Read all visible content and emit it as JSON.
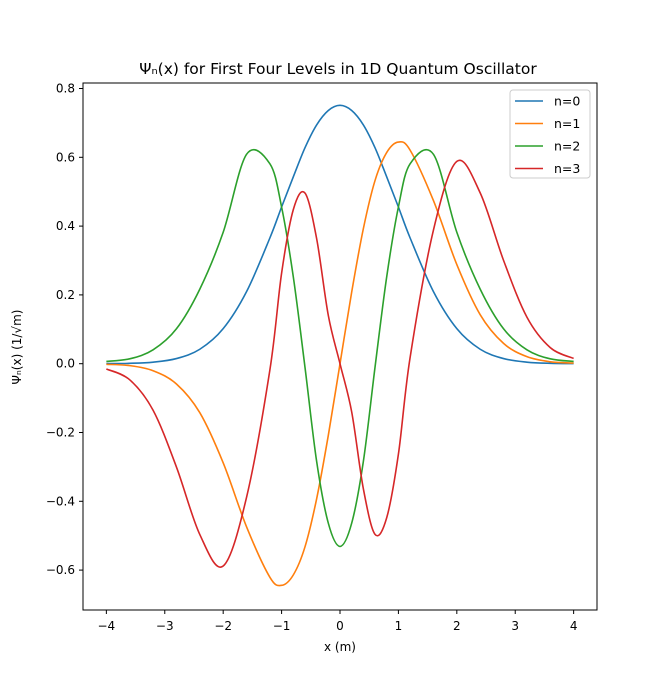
{
  "chart_data": {
    "type": "line",
    "title": "Ψₙ(x) for First Four Levels in 1D Quantum Oscillator",
    "xlabel": "x (m)",
    "ylabel": "Ψₙ(x) (1/√m)",
    "xlim": [
      -4.4,
      4.4
    ],
    "ylim": [
      -0.716,
      0.816
    ],
    "x_ticks": [
      -4,
      -3,
      -2,
      -1,
      0,
      1,
      2,
      3,
      4
    ],
    "x_tick_labels": [
      "−4",
      "−3",
      "−2",
      "−1",
      "0",
      "1",
      "2",
      "3",
      "4"
    ],
    "y_ticks": [
      -0.6,
      -0.4,
      -0.2,
      0.0,
      0.2,
      0.4,
      0.6,
      0.8
    ],
    "y_tick_labels": [
      "−0.6",
      "−0.4",
      "−0.2",
      "0.0",
      "0.2",
      "0.4",
      "0.6",
      "0.8"
    ],
    "grid": false,
    "legend_position": "top-right",
    "x": [
      -4.0,
      -3.6,
      -3.2,
      -2.8,
      -2.4,
      -2.0,
      -1.6,
      -1.2,
      -1.0,
      -0.8,
      -0.6,
      -0.4,
      -0.2,
      0.0,
      0.2,
      0.4,
      0.6,
      0.8,
      1.0,
      1.2,
      1.6,
      2.0,
      2.4,
      2.8,
      3.2,
      3.6,
      4.0
    ],
    "series": [
      {
        "name": "n=0",
        "color": "#1f77b4",
        "values": [
          0.0003,
          0.0011,
          0.0045,
          0.0149,
          0.042,
          0.1019,
          0.2095,
          0.3658,
          0.4556,
          0.5429,
          0.6275,
          0.6942,
          0.7362,
          0.7511,
          0.7362,
          0.6942,
          0.6275,
          0.5429,
          0.4556,
          0.3658,
          0.2095,
          0.1019,
          0.042,
          0.0149,
          0.0045,
          0.0011,
          0.0003
        ]
      },
      {
        "name": "n=1",
        "color": "#ff7f0e",
        "values": [
          -0.0019,
          -0.0056,
          -0.0204,
          -0.059,
          -0.1425,
          -0.2882,
          -0.4741,
          -0.6209,
          -0.6443,
          -0.6142,
          -0.5327,
          -0.3927,
          -0.2082,
          0.0,
          0.2082,
          0.3927,
          0.5327,
          0.6142,
          0.6443,
          0.6209,
          0.4741,
          0.2882,
          0.1425,
          0.059,
          0.0204,
          0.0056,
          0.0019
        ]
      },
      {
        "name": "n=2",
        "color": "#2ca02c",
        "values": [
          0.0066,
          0.0142,
          0.0404,
          0.1015,
          0.2169,
          0.382,
          0.6086,
          0.581,
          0.4556,
          0.253,
          -0.0096,
          -0.284,
          -0.4636,
          -0.5311,
          -0.4636,
          -0.284,
          -0.0096,
          0.253,
          0.4556,
          0.581,
          0.6086,
          0.382,
          0.2169,
          0.1015,
          0.0404,
          0.0142,
          0.0066
        ]
      },
      {
        "name": "n=3",
        "color": "#d62728",
        "values": [
          -0.0154,
          -0.0468,
          -0.1354,
          -0.3004,
          -0.4966,
          -0.5882,
          -0.3885,
          -0.0176,
          0.263,
          0.4475,
          0.4961,
          0.3636,
          0.14,
          0.0,
          -0.14,
          -0.3636,
          -0.4961,
          -0.4475,
          -0.263,
          0.0176,
          0.3885,
          0.5882,
          0.4966,
          0.3004,
          0.1354,
          0.0468,
          0.0154
        ]
      }
    ]
  }
}
